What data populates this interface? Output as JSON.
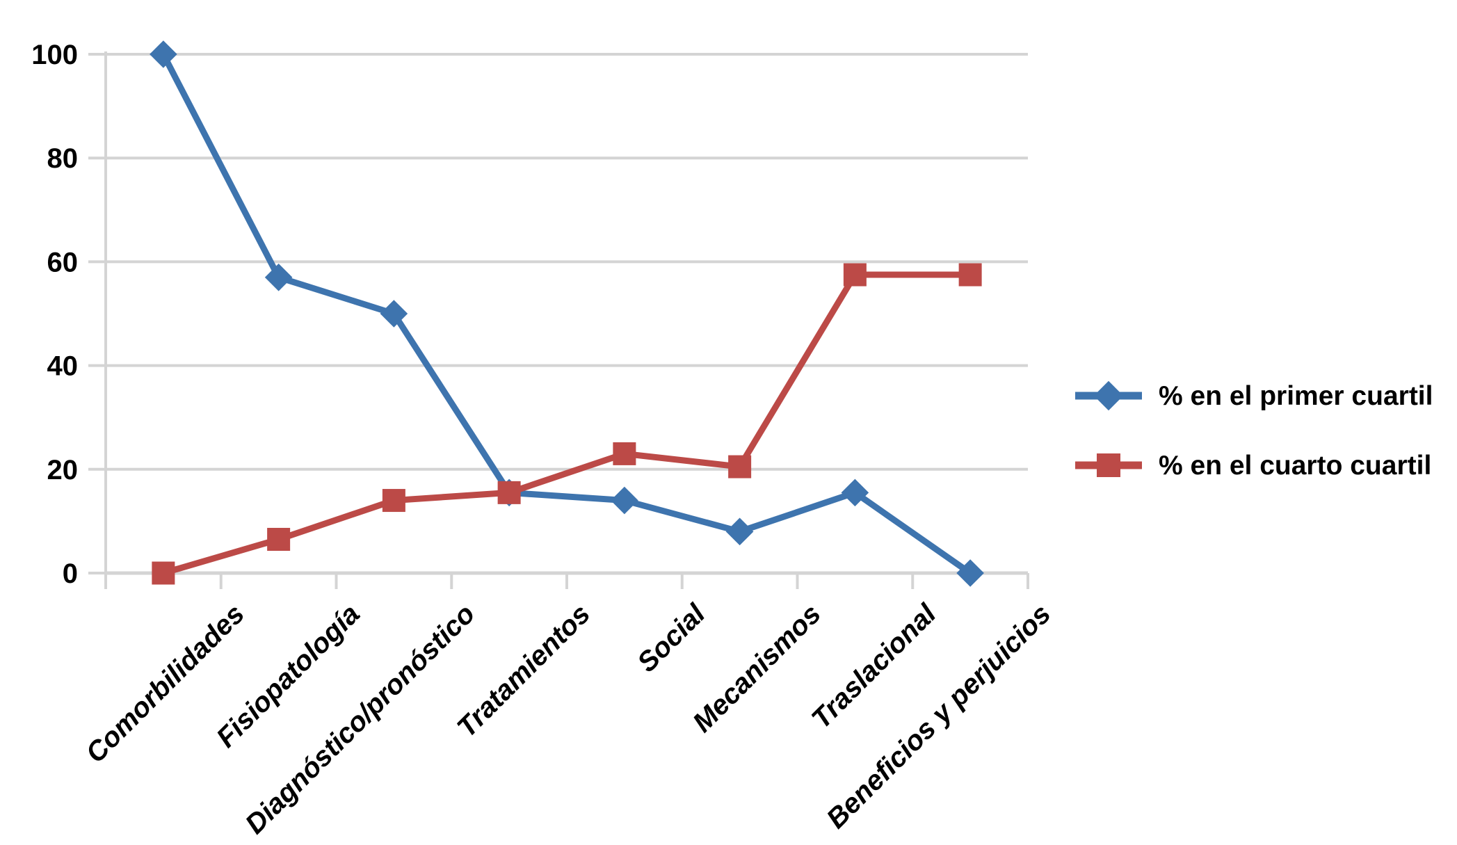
{
  "chart_data": {
    "type": "line",
    "title": "",
    "xlabel": "",
    "ylabel": "",
    "categories": [
      "Comorbilidades",
      "Fisiopatología",
      "Diagnóstico/pronóstico",
      "Tratamientos",
      "Social",
      "Mecanismos",
      "Traslacional",
      "Beneficios y perjuicios"
    ],
    "series": [
      {
        "name": "% en el primer cuartil",
        "marker": "diamond",
        "color": "#3E74AE",
        "values": [
          100,
          57,
          50,
          15.5,
          14,
          8,
          15.5,
          0
        ]
      },
      {
        "name": "% en el cuarto cuartil",
        "marker": "square",
        "color": "#BC4A47",
        "values": [
          0,
          6.5,
          14,
          15.5,
          23,
          20.5,
          57.5,
          57.5
        ]
      }
    ],
    "ylim": [
      0,
      100
    ],
    "yticks": [
      0,
      20,
      40,
      60,
      80,
      100
    ],
    "grid": "horizontal",
    "gridline_color": "#D4D4D4",
    "axis_color": "#D4D4D4",
    "text_color": "#000000",
    "legend_position": "right"
  }
}
